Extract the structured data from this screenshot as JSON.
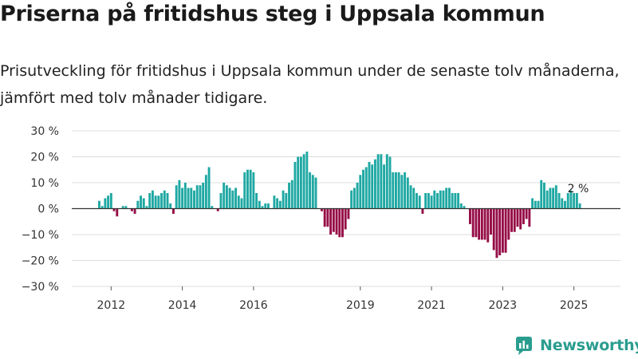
{
  "header": {
    "title": "Priserna på fritidshus steg i Uppsala kommun",
    "subtitle": "Prisutveckling för fritidshus i Uppsala kommun under de senaste tolv månaderna, jämfört med tolv månader tidigare."
  },
  "brand": {
    "name": "Newsworthy",
    "icon": "newsworthy-logo-icon"
  },
  "colors": {
    "positive": "#1fa8a3",
    "negative": "#960d47",
    "grid": "#dddddd",
    "zero_line": "#333333",
    "text": "#333333"
  },
  "chart_data": {
    "type": "bar",
    "title": "Priserna på fritidshus steg i Uppsala kommun",
    "xlabel": "",
    "ylabel": "",
    "unit": "%",
    "ylim": [
      -30,
      30
    ],
    "yticks": [
      30,
      20,
      10,
      0,
      -10,
      -20,
      -30
    ],
    "ytick_labels": [
      "30 %",
      "20 %",
      "10 %",
      "0 %",
      "−10 %",
      "−20 %",
      "−30 %"
    ],
    "xticks": [
      {
        "label": "2012",
        "index": 4
      },
      {
        "label": "2014",
        "index": 28
      },
      {
        "label": "2016",
        "index": 52
      },
      {
        "label": "2019",
        "index": 88
      },
      {
        "label": "2021",
        "index": 112
      },
      {
        "label": "2023",
        "index": 136
      },
      {
        "label": "2025",
        "index": 160
      }
    ],
    "last_value_label": "2 %",
    "values": [
      3,
      1,
      4,
      5,
      6,
      -1,
      -3,
      0,
      1,
      1,
      0,
      -1,
      -2,
      3,
      5,
      4,
      1,
      6,
      7,
      5,
      5,
      6,
      7,
      6,
      2,
      -2,
      9,
      11,
      8,
      10,
      8,
      8,
      7,
      9,
      9,
      10,
      13,
      16,
      1,
      0,
      -1,
      6,
      10,
      9,
      8,
      7,
      8,
      5,
      4,
      14,
      15,
      15,
      14,
      6,
      3,
      1,
      2,
      2,
      0,
      5,
      4,
      3,
      7,
      6,
      10,
      11,
      18,
      20,
      20,
      21,
      22,
      14,
      13,
      12,
      0,
      -1,
      -7,
      -7,
      -10,
      -9,
      -10,
      -11,
      -11,
      -8,
      -4,
      7,
      8,
      10,
      13,
      15,
      16,
      18,
      17,
      19,
      21,
      21,
      17,
      21,
      20,
      14,
      14,
      14,
      13,
      14,
      12,
      9,
      8,
      6,
      5,
      -2,
      6,
      6,
      5,
      7,
      6,
      7,
      7,
      8,
      8,
      6,
      6,
      6,
      2,
      1,
      0,
      -6,
      -11,
      -11,
      -12,
      -12,
      -12,
      -13,
      -10,
      -16,
      -19,
      -18,
      -17,
      -17,
      -12,
      -9,
      -9,
      -7,
      -8,
      -6,
      -4,
      -7,
      4,
      3,
      3,
      11,
      10,
      7,
      8,
      8,
      9,
      6,
      4,
      3,
      6,
      7,
      6,
      6,
      2
    ]
  }
}
